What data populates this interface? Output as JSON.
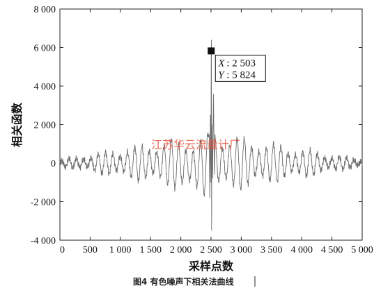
{
  "chart_data": {
    "type": "line",
    "title": "",
    "xlabel": "采样点数",
    "ylabel": "相关函数",
    "xlim": [
      0,
      5000
    ],
    "ylim": [
      -4000,
      8000
    ],
    "x_ticks": [
      0,
      500,
      1000,
      1500,
      2000,
      2500,
      3000,
      3500,
      4000,
      4500,
      5000
    ],
    "x_tick_labels": [
      "0",
      "500",
      "1 000",
      "1 500",
      "2 000",
      "2 500",
      "3 000",
      "3 500",
      "4 000",
      "4 500",
      "5 000"
    ],
    "y_ticks": [
      -4000,
      -2000,
      0,
      2000,
      4000,
      6000,
      8000
    ],
    "y_tick_labels": [
      "-4 000",
      "-2 000",
      "0",
      "2 000",
      "4 000",
      "6 000",
      "8 000"
    ],
    "grid": false,
    "series": [
      {
        "color": "#6b6b6b",
        "description_points": [
          {
            "x": 0,
            "y": 0
          },
          {
            "x": 250,
            "y": 150
          },
          {
            "x": 500,
            "y": 400
          },
          {
            "x": 1000,
            "y": 700
          },
          {
            "x": 1500,
            "y": 1000
          },
          {
            "x": 2000,
            "y": 1200
          },
          {
            "x": 2400,
            "y": 1500
          },
          {
            "x": 2480,
            "y": -1800
          },
          {
            "x": 2503,
            "y": 5824
          },
          {
            "x": 2510,
            "y": -3500
          },
          {
            "x": 2550,
            "y": 3600
          },
          {
            "x": 3000,
            "y": 1100
          },
          {
            "x": 3500,
            "y": 900
          },
          {
            "x": 4000,
            "y": 600
          },
          {
            "x": 4500,
            "y": 300
          },
          {
            "x": 5000,
            "y": 0
          }
        ]
      }
    ],
    "annotation": {
      "x": 2503,
      "y": 5824,
      "x_label": "X",
      "x_value": "2 503",
      "y_label": "Y",
      "y_value": "5 824"
    }
  },
  "watermark": "江苏华云流量计厂",
  "caption": "图4 有色噪声下相关法曲线"
}
